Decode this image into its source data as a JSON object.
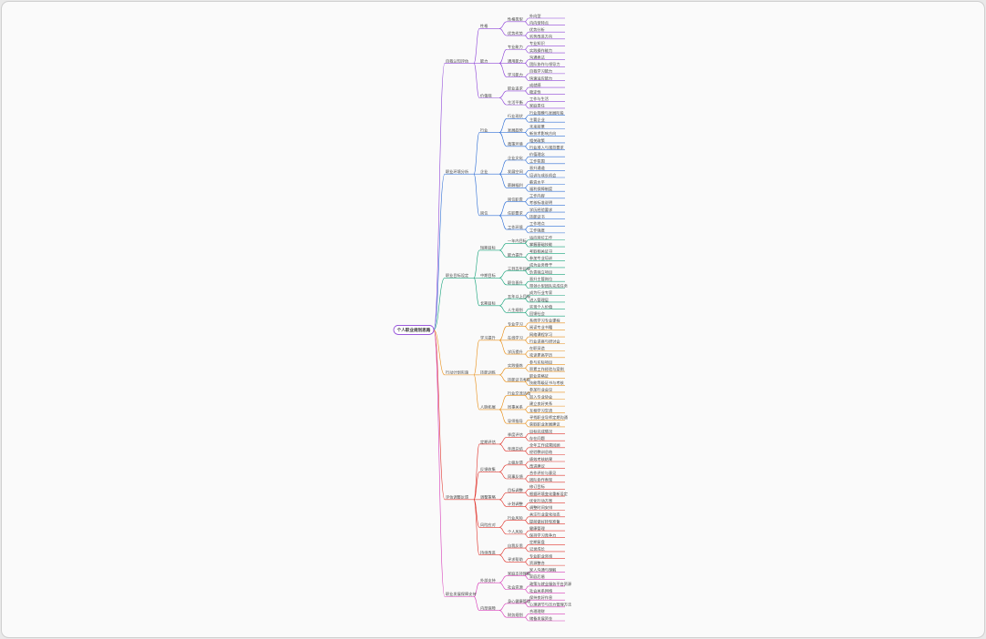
{
  "tree": {
    "label": "个人职业规划思路",
    "children": [
      {
        "label": "自我认知评估",
        "color": "#8e44d8",
        "children": [
          {
            "label": "性格",
            "children": [
              {
                "label": "性格类型",
                "children": [
                  {
                    "label": "外向型"
                  },
                  {
                    "label": "内向型特点"
                  }
                ]
              },
              {
                "label": "优势劣势",
                "children": [
                  {
                    "label": "优势分析"
                  },
                  {
                    "label": "劣势改进方向"
                  }
                ]
              }
            ]
          },
          {
            "label": "能力",
            "children": [
              {
                "label": "专业能力",
                "children": [
                  {
                    "label": "专业知识"
                  },
                  {
                    "label": "实践操作能力"
                  }
                ]
              },
              {
                "label": "通用能力",
                "children": [
                  {
                    "label": "沟通表达"
                  },
                  {
                    "label": "团队协作与领导力"
                  }
                ]
              },
              {
                "label": "学习能力",
                "children": [
                  {
                    "label": "自我学习能力"
                  },
                  {
                    "label": "快速适应能力"
                  }
                ]
              }
            ]
          },
          {
            "label": "价值观",
            "children": [
              {
                "label": "职业追求",
                "children": [
                  {
                    "label": "成就感"
                  },
                  {
                    "label": "稳定性"
                  }
                ]
              },
              {
                "label": "生活平衡",
                "children": [
                  {
                    "label": "工作与生活"
                  },
                  {
                    "label": "家庭责任"
                  }
                ]
              }
            ]
          }
        ]
      },
      {
        "label": "职业环境分析",
        "color": "#2f6fd6",
        "children": [
          {
            "label": "行业",
            "children": [
              {
                "label": "行业现状",
                "children": [
                  {
                    "label": "行业规模与发展阶段"
                  },
                  {
                    "label": "主要企业"
                  }
                ]
              },
              {
                "label": "发展趋势",
                "children": [
                  {
                    "label": "未来前景"
                  },
                  {
                    "label": "新技术影响方向"
                  }
                ]
              },
              {
                "label": "政策环境",
                "children": [
                  {
                    "label": "相关政策"
                  },
                  {
                    "label": "行业准入与规范要求"
                  }
                ]
              }
            ]
          },
          {
            "label": "企业",
            "children": [
              {
                "label": "企业文化",
                "children": [
                  {
                    "label": "价值理念"
                  },
                  {
                    "label": "工作氛围"
                  }
                ]
              },
              {
                "label": "发展空间",
                "children": [
                  {
                    "label": "晋升通道"
                  },
                  {
                    "label": "培训与成长机会"
                  }
                ]
              },
              {
                "label": "薪酬福利",
                "children": [
                  {
                    "label": "薪资水平"
                  },
                  {
                    "label": "福利保障制度"
                  }
                ]
              }
            ]
          },
          {
            "label": "岗位",
            "children": [
              {
                "label": "岗位职责",
                "children": [
                  {
                    "label": "工作内容"
                  },
                  {
                    "label": "考核标准说明"
                  }
                ]
              },
              {
                "label": "任职要求",
                "children": [
                  {
                    "label": "学历经验要求"
                  },
                  {
                    "label": "技能证书"
                  }
                ]
              },
              {
                "label": "工作环境",
                "children": [
                  {
                    "label": "工作地点"
                  },
                  {
                    "label": "工作强度"
                  }
                ]
              }
            ]
          }
        ]
      },
      {
        "label": "职业目标设定",
        "color": "#16a37a",
        "children": [
          {
            "label": "短期目标",
            "children": [
              {
                "label": "一年内目标",
                "children": [
                  {
                    "label": "适应岗位工作"
                  },
                  {
                    "label": "掌握基础技能"
                  }
                ]
              },
              {
                "label": "能力提升",
                "children": [
                  {
                    "label": "考取相关证书"
                  },
                  {
                    "label": "参加专业培训"
                  }
                ]
              }
            ]
          },
          {
            "label": "中期目标",
            "children": [
              {
                "label": "三到五年目标",
                "children": [
                  {
                    "label": "成为业务骨干"
                  },
                  {
                    "label": "负责独立项目"
                  }
                ]
              },
              {
                "label": "职位晋升",
                "children": [
                  {
                    "label": "晋升主管岗位"
                  },
                  {
                    "label": "带领小型团队完成任务"
                  }
                ]
              }
            ]
          },
          {
            "label": "长期目标",
            "children": [
              {
                "label": "五年以上目标",
                "children": [
                  {
                    "label": "成为行业专家"
                  },
                  {
                    "label": "进入管理层"
                  }
                ]
              },
              {
                "label": "人生规划",
                "children": [
                  {
                    "label": "实现个人价值"
                  },
                  {
                    "label": "回馈社会"
                  }
                ]
              }
            ]
          }
        ]
      },
      {
        "label": "行动计划实施",
        "color": "#e8901a",
        "children": [
          {
            "label": "学习提升",
            "children": [
              {
                "label": "专业学习",
                "children": [
                  {
                    "label": "系统学习专业课程"
                  },
                  {
                    "label": "阅读专业书籍"
                  }
                ]
              },
              {
                "label": "在线学习",
                "children": [
                  {
                    "label": "网络课程学习"
                  },
                  {
                    "label": "行业讲座与研讨会"
                  }
                ]
              },
              {
                "label": "学历提升",
                "children": [
                  {
                    "label": "在职深造"
                  },
                  {
                    "label": "攻读更高学历"
                  }
                ]
              }
            ]
          },
          {
            "label": "技能训练",
            "children": [
              {
                "label": "实践锻炼",
                "children": [
                  {
                    "label": "参与实际项目"
                  },
                  {
                    "label": "积累工作经验与案例"
                  }
                ]
              },
              {
                "label": "技能证书考取",
                "children": [
                  {
                    "label": "职业资格证"
                  },
                  {
                    "label": "技能等级证书与考核"
                  }
                ]
              }
            ]
          },
          {
            "label": "人脉拓展",
            "children": [
              {
                "label": "行业交流活动",
                "children": [
                  {
                    "label": "参加行业会议"
                  },
                  {
                    "label": "加入专业协会"
                  }
                ]
              },
              {
                "label": "同事关系",
                "children": [
                  {
                    "label": "建立良好关系"
                  },
                  {
                    "label": "互相学习交流"
                  }
                ]
              },
              {
                "label": "导师指导",
                "children": [
                  {
                    "label": "寻找职业导师定期沟通"
                  },
                  {
                    "label": "获取职业发展建议"
                  }
                ]
              }
            ]
          }
        ]
      },
      {
        "label": "评估调整反馈",
        "color": "#e0342c",
        "children": [
          {
            "label": "定期评估",
            "children": [
              {
                "label": "季度评估",
                "children": [
                  {
                    "label": "目标完成情况"
                  },
                  {
                    "label": "存在问题"
                  }
                ]
              },
              {
                "label": "年度总结",
                "children": [
                  {
                    "label": "全年工作成果回顾"
                  },
                  {
                    "label": "经验教训总结"
                  }
                ]
              }
            ]
          },
          {
            "label": "反馈收集",
            "children": [
              {
                "label": "上级反馈",
                "children": [
                  {
                    "label": "绩效考核结果"
                  },
                  {
                    "label": "改进建议"
                  }
                ]
              },
              {
                "label": "同事反馈",
                "children": [
                  {
                    "label": "合作评价与意见"
                  },
                  {
                    "label": "团队协作表现"
                  }
                ]
              }
            ]
          },
          {
            "label": "调整策略",
            "children": [
              {
                "label": "目标调整",
                "children": [
                  {
                    "label": "修订目标"
                  },
                  {
                    "label": "根据环境变化重新设定"
                  }
                ]
              },
              {
                "label": "计划调整",
                "children": [
                  {
                    "label": "优化行动方案"
                  },
                  {
                    "label": "调整时间安排"
                  }
                ]
              }
            ]
          },
          {
            "label": "风险应对",
            "children": [
              {
                "label": "行业风险",
                "children": [
                  {
                    "label": "关注行业变化动态"
                  },
                  {
                    "label": "提前做好转型准备"
                  }
                ]
              },
              {
                "label": "个人风险",
                "children": [
                  {
                    "label": "健康管理"
                  },
                  {
                    "label": "保持学习竞争力"
                  }
                ]
              }
            ]
          },
          {
            "label": "持续改进",
            "children": [
              {
                "label": "自我反思",
                "children": [
                  {
                    "label": "定期复盘"
                  },
                  {
                    "label": "记录成长"
                  }
                ]
              },
              {
                "label": "寻求帮助",
                "children": [
                  {
                    "label": "专业职业咨询"
                  },
                  {
                    "label": "资源整合"
                  }
                ]
              }
            ]
          }
        ]
      },
      {
        "label": "职业发展保障支持",
        "color": "#d63ab8",
        "children": [
          {
            "label": "外部支持",
            "children": [
              {
                "label": "家庭支持理解",
                "children": [
                  {
                    "label": "家人沟通与理解"
                  },
                  {
                    "label": "家庭后盾"
                  }
                ]
              },
              {
                "label": "社会资源",
                "children": [
                  {
                    "label": "政策与就业服务平台资源"
                  },
                  {
                    "label": "社会关系网络"
                  }
                ]
              }
            ]
          },
          {
            "label": "内部保障",
            "children": [
              {
                "label": "身心健康管理",
                "children": [
                  {
                    "label": "保持良好作息"
                  },
                  {
                    "label": "心理调节与压力管理方法"
                  }
                ]
              },
              {
                "label": "财务规划",
                "children": [
                  {
                    "label": "合理理财"
                  },
                  {
                    "label": "储备发展资金"
                  }
                ]
              }
            ]
          }
        ]
      }
    ]
  }
}
